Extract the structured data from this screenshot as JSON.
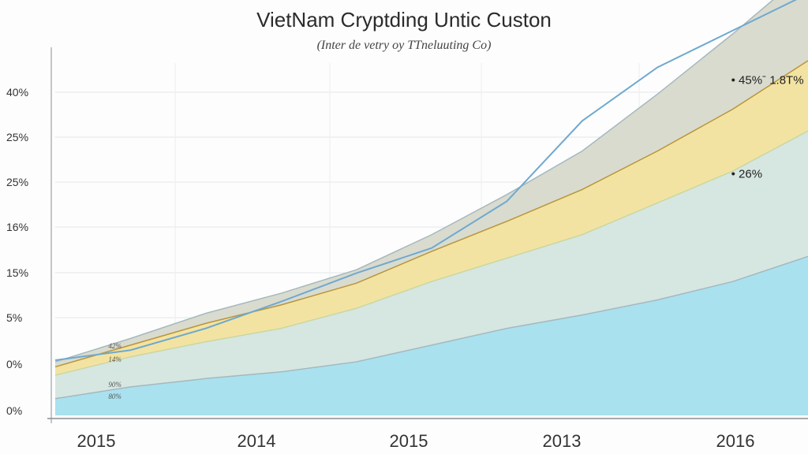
{
  "chart_data": {
    "type": "area",
    "title": "VietNam Cryptding Untic Custon",
    "subtitle": "(Inter de vetry oy TTneluuting Co)",
    "x_tick_labels": [
      "2015",
      "2014",
      "2015",
      "2013",
      "2016"
    ],
    "y_tick_labels": [
      "0%",
      "0%",
      "5%",
      "15%",
      "16%",
      "25%",
      "25%",
      "40%"
    ],
    "x": [
      0,
      0.1,
      0.2,
      0.3,
      0.4,
      0.5,
      0.6,
      0.7,
      0.8,
      0.9,
      1.0
    ],
    "series": [
      {
        "name": "",
        "color": "#a9e1ef",
        "values": [
          1.0,
          1.7,
          2.2,
          2.6,
          3.2,
          4.2,
          5.2,
          6.0,
          6.9,
          8.0,
          9.5
        ]
      },
      {
        "name": "",
        "color": "#d6e6e1",
        "values": [
          1.4,
          1.8,
          2.2,
          2.6,
          3.2,
          3.8,
          4.2,
          4.8,
          5.8,
          6.6,
          7.5
        ]
      },
      {
        "name": "",
        "color": "#f3e3a2",
        "values": [
          0.5,
          0.7,
          1.1,
          1.4,
          1.5,
          1.8,
          2.2,
          2.7,
          3.1,
          3.7,
          4.2
        ]
      },
      {
        "name": "",
        "color": "#d9dbcf",
        "values": [
          0.3,
          0.4,
          0.6,
          0.7,
          0.8,
          1.0,
          1.6,
          2.3,
          3.4,
          4.5,
          5.4
        ]
      }
    ],
    "top_line": {
      "color": "#6fa9cf",
      "values": [
        3.3,
        3.9,
        5.2,
        6.8,
        8.5,
        10.0,
        12.8,
        17.6,
        20.8,
        23.0,
        25.2
      ]
    },
    "ylim": [
      0,
      22
    ],
    "grid": true,
    "annotations": [
      {
        "text": "• 45%ˉ 1.8T%",
        "x": 0.9,
        "y": 19.8
      },
      {
        "text": "• 26%",
        "x": 0.9,
        "y": 14.2
      }
    ],
    "small_annotations": [
      {
        "text": "42%",
        "x": 0.1,
        "y": 4.0
      },
      {
        "text": "14%",
        "x": 0.1,
        "y": 3.2
      },
      {
        "text": "90%",
        "x": 0.1,
        "y": 1.7
      },
      {
        "text": "80%",
        "x": 0.1,
        "y": 1.0
      }
    ]
  }
}
